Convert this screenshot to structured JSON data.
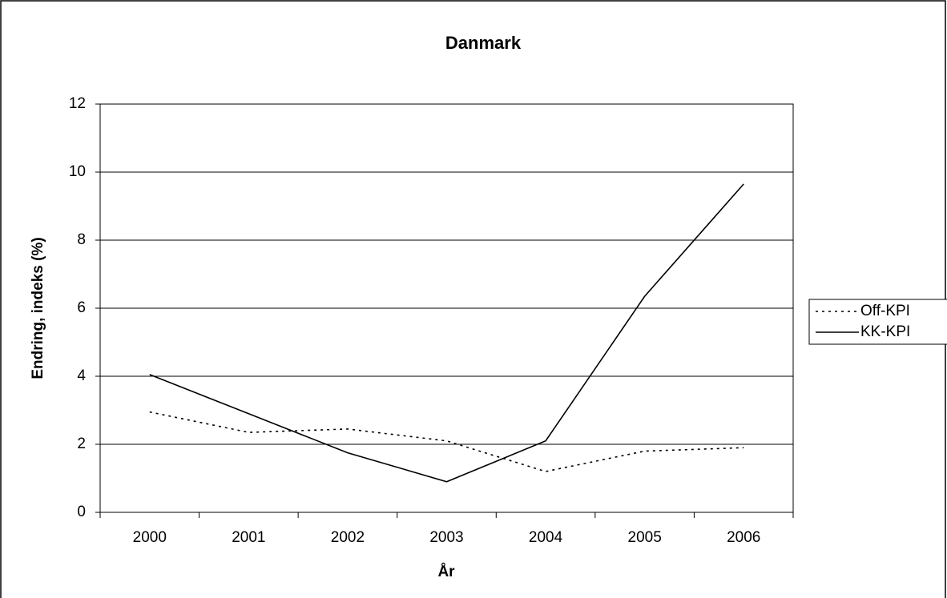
{
  "chart_data": {
    "type": "line",
    "title": "Danmark",
    "x_label": "År",
    "y_label": "Endring, indeks (%)",
    "categories": [
      "2000",
      "2001",
      "2002",
      "2003",
      "2004",
      "2005",
      "2006"
    ],
    "series": [
      {
        "name": "Off-KPI",
        "color": "#000000",
        "style": "dotted",
        "values": [
          2.95,
          2.35,
          2.45,
          2.1,
          1.2,
          1.8,
          1.9
        ]
      },
      {
        "name": "KK-KPI",
        "color": "#000000",
        "style": "solid",
        "values": [
          4.05,
          2.9,
          1.75,
          0.9,
          2.1,
          6.35,
          9.65
        ]
      }
    ],
    "ylim": [
      0,
      12
    ],
    "yticks": [
      0,
      2,
      4,
      6,
      8,
      10,
      12
    ],
    "grid": true,
    "legend": "right"
  }
}
